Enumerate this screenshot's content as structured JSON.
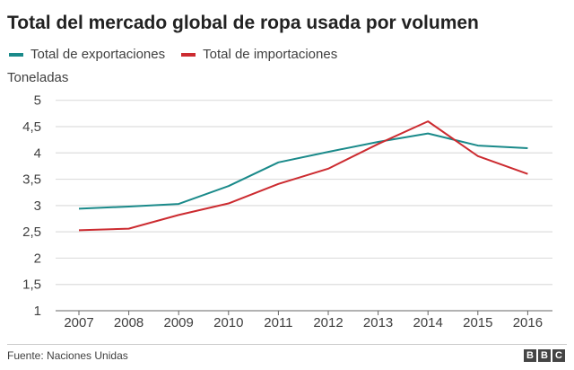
{
  "chart_data": {
    "type": "line",
    "title": "Total del mercado global de ropa usada por volumen",
    "ylabel": "Toneladas",
    "xlabel": "",
    "categories": [
      "2007",
      "2008",
      "2009",
      "2010",
      "2011",
      "2012",
      "2013",
      "2014",
      "2015",
      "2016"
    ],
    "ylim": [
      1,
      5
    ],
    "yticks": [
      "1",
      "1,5",
      "2",
      "2,5",
      "3",
      "3,5",
      "4",
      "4,5",
      "5"
    ],
    "ytick_values": [
      1,
      1.5,
      2,
      2.5,
      3,
      3.5,
      4,
      4.5,
      5
    ],
    "grid": true,
    "legend_position": "top-left",
    "series": [
      {
        "name": "Total de exportaciones",
        "color": "#1a8a8a",
        "values": [
          2.94,
          2.98,
          3.03,
          3.37,
          3.82,
          4.02,
          4.21,
          4.37,
          4.14,
          4.09
        ]
      },
      {
        "name": "Total de importaciones",
        "color": "#cc2b30",
        "values": [
          2.53,
          2.56,
          2.82,
          3.04,
          3.41,
          3.7,
          4.17,
          4.6,
          3.94,
          3.6
        ]
      }
    ]
  },
  "footer": {
    "source": "Fuente: Naciones Unidas",
    "logo_letters": [
      "B",
      "B",
      "C"
    ]
  }
}
